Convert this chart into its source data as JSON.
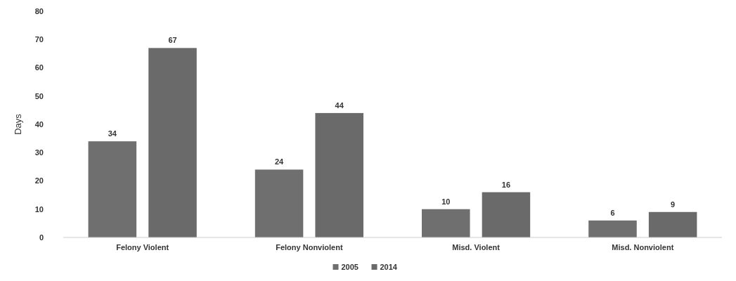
{
  "chart_data": {
    "type": "bar",
    "ylabel": "Days",
    "categories": [
      "Felony Violent",
      "Felony Nonviolent",
      "Misd. Violent",
      "Misd. Nonviolent"
    ],
    "series": [
      {
        "name": "2005",
        "color": "#6f6f6f",
        "values": [
          34,
          24,
          10,
          6
        ]
      },
      {
        "name": "2014",
        "color": "#6a6a6a",
        "values": [
          67,
          44,
          16,
          9
        ]
      }
    ],
    "ylim": [
      0,
      80
    ],
    "yticks": [
      0,
      10,
      20,
      30,
      40,
      50,
      60,
      70,
      80
    ],
    "data_labels": true,
    "legend": "bottom",
    "grid": false
  }
}
